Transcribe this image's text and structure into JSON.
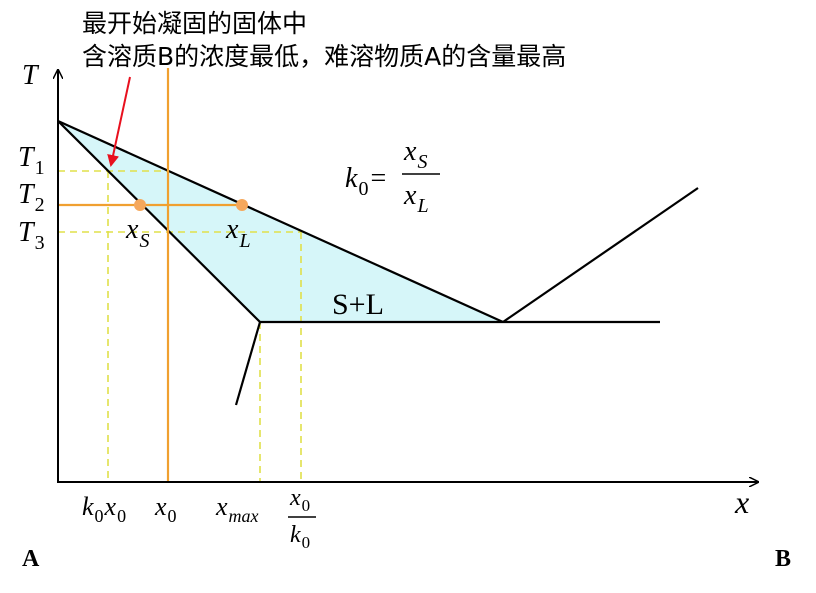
{
  "annotation": {
    "line1": "最开始凝固的固体中",
    "line2": "含溶质B的浓度最低，难溶物质A的含量最高"
  },
  "axes": {
    "y_label": "T",
    "x_label": "x",
    "left_corner": "A",
    "right_corner": "B"
  },
  "temperatures": [
    {
      "base": "T",
      "sub": "1"
    },
    {
      "base": "T",
      "sub": "2"
    },
    {
      "base": "T",
      "sub": "3"
    }
  ],
  "x_ticks": {
    "k0x0": {
      "k": "k",
      "k_sub": "0",
      "x": "x",
      "x_sub": "0"
    },
    "x0": {
      "base": "x",
      "sub": "0"
    },
    "xmax": {
      "base": "x",
      "sub": "max"
    },
    "x0_over_k0": {
      "num": "x",
      "num_sub": "0",
      "den": "k",
      "den_sub": "0"
    }
  },
  "points": {
    "xS": {
      "base": "x",
      "sub": "S"
    },
    "xL": {
      "base": "x",
      "sub": "L"
    }
  },
  "formula": {
    "lhs": "k",
    "lhs_sub": "0",
    "eq": "=",
    "num": "x",
    "num_sub": "S",
    "den": "x",
    "den_sub": "L"
  },
  "region_label": "S+L",
  "colors": {
    "two_phase_fill": "#d6f6f9",
    "guide_dash": "#e0e04a",
    "composition_line": "#f0a030",
    "point_marker": "#f5a85c",
    "arrow": "#e8101e",
    "line": "#000000"
  }
}
